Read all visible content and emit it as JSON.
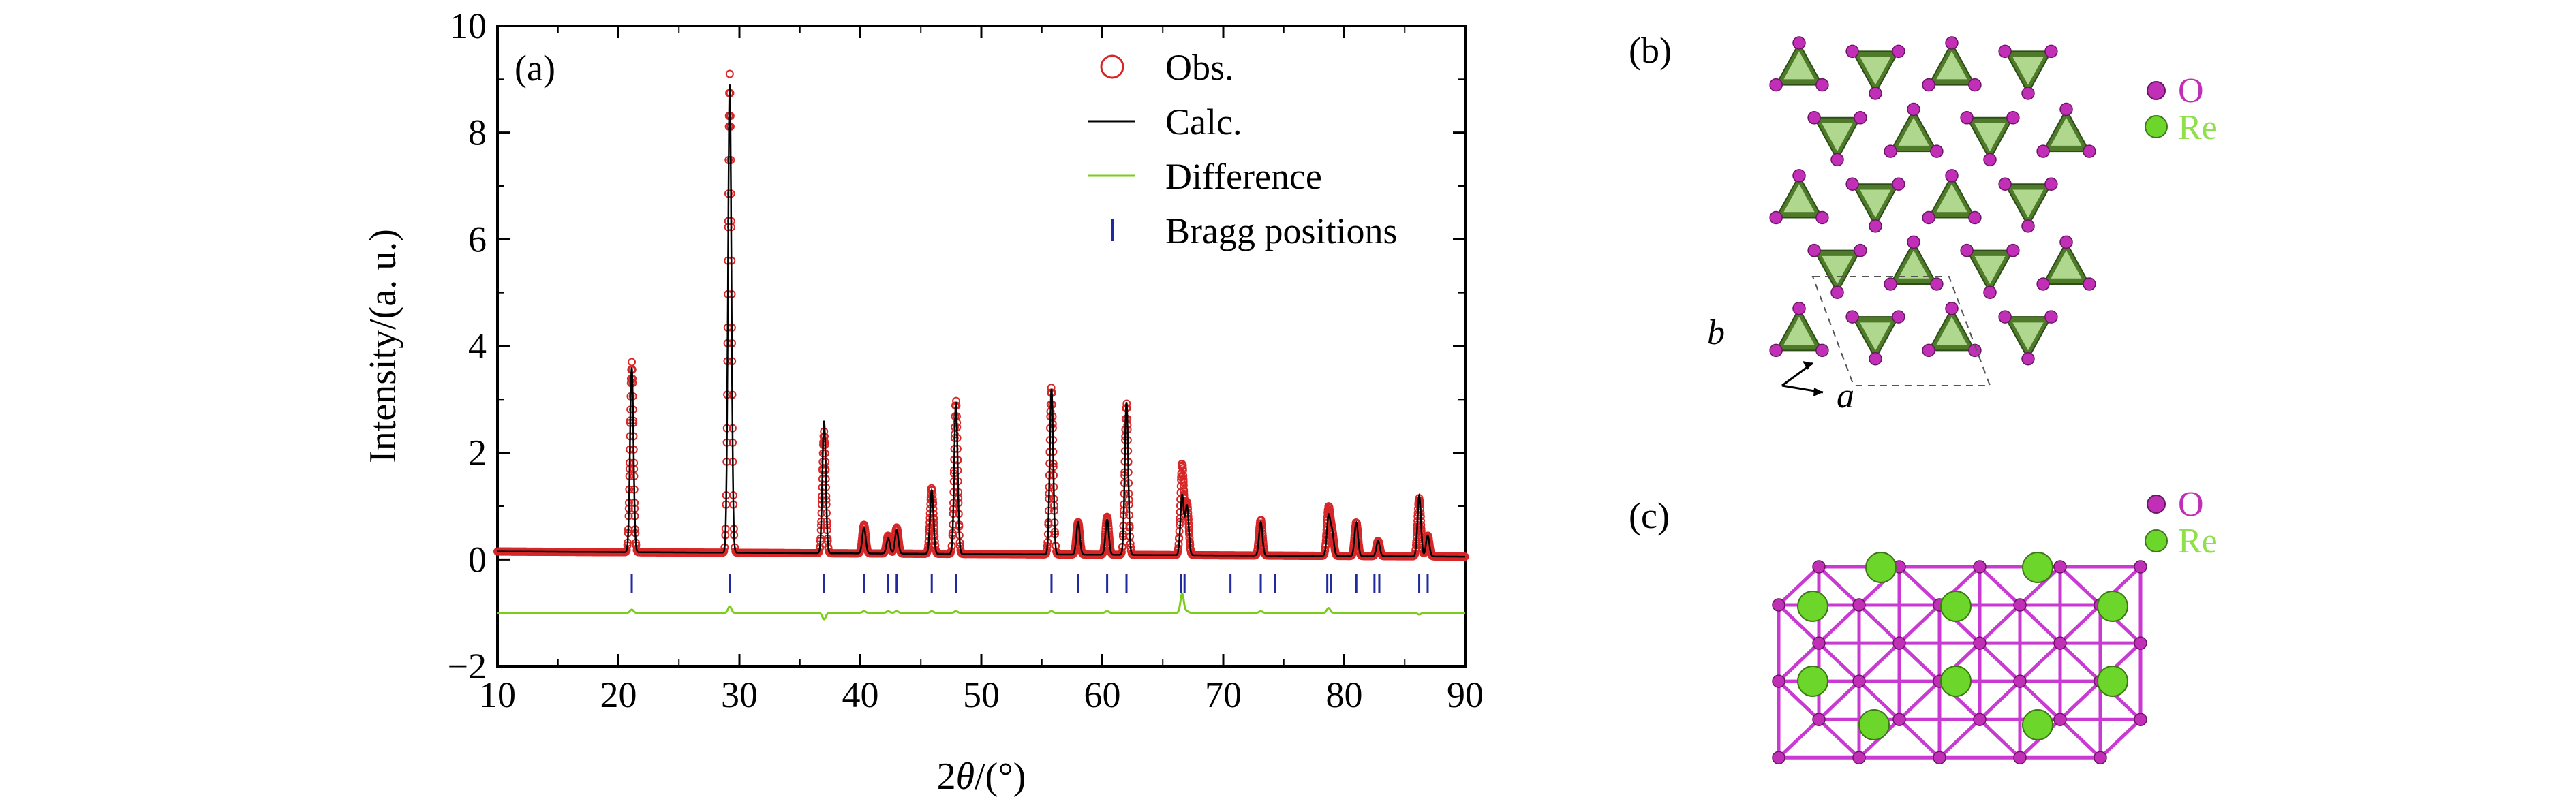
{
  "panel_labels": {
    "a": "(a)",
    "b": "(b)",
    "c": "(c)"
  },
  "legend_b": {
    "o_label": "O",
    "re_label": "Re"
  },
  "legend_c": {
    "o_label": "O",
    "re_label": "Re"
  },
  "axes_labels_b": {
    "a": "a",
    "b": "b"
  },
  "colors": {
    "obs": "#d62728",
    "calc": "#000000",
    "difference": "#7ccc1a",
    "bragg": "#1f2a9e",
    "oxygen": "#c02fb5",
    "rhenium": "#6dd62a",
    "polyhedra": "#4f7a2a",
    "bond": "#c83ad2"
  },
  "chart_data": {
    "type": "line",
    "xlabel_prefix": "2",
    "xlabel_symbol": "θ",
    "xlabel_suffix": "/(°)",
    "ylabel": "Intensity/(a. u.)",
    "xlim": [
      10,
      90
    ],
    "ylim": [
      -2,
      10
    ],
    "xticks": [
      10,
      20,
      30,
      40,
      50,
      60,
      70,
      80,
      90
    ],
    "yticks": [
      -2,
      0,
      2,
      4,
      6,
      8,
      10
    ],
    "background": 0.15,
    "difference_offset": -1.0,
    "bragg_y": -0.45,
    "peaks": [
      {
        "x": 21.1,
        "obs": 3.7,
        "calc": 3.6
      },
      {
        "x": 29.2,
        "obs": 9.1,
        "calc": 8.9
      },
      {
        "x": 37.0,
        "obs": 2.4,
        "calc": 2.6
      },
      {
        "x": 40.3,
        "obs": 0.65,
        "calc": 0.6
      },
      {
        "x": 42.3,
        "obs": 0.45,
        "calc": 0.4
      },
      {
        "x": 43.0,
        "obs": 0.6,
        "calc": 0.55
      },
      {
        "x": 45.9,
        "obs": 1.35,
        "calc": 1.3
      },
      {
        "x": 47.9,
        "obs": 3.0,
        "calc": 2.95
      },
      {
        "x": 55.8,
        "obs": 3.25,
        "calc": 3.2
      },
      {
        "x": 58.0,
        "obs": 0.7,
        "calc": 0.7
      },
      {
        "x": 60.4,
        "obs": 0.8,
        "calc": 0.75
      },
      {
        "x": 62.0,
        "obs": 2.95,
        "calc": 2.95
      },
      {
        "x": 66.6,
        "obs": 1.8,
        "calc": 1.2
      },
      {
        "x": 67.0,
        "obs": 1.05,
        "calc": 1.0
      },
      {
        "x": 73.1,
        "obs": 0.75,
        "calc": 0.7
      },
      {
        "x": 78.7,
        "obs": 0.95,
        "calc": 0.8
      },
      {
        "x": 79.0,
        "obs": 0.5,
        "calc": 0.5
      },
      {
        "x": 81.0,
        "obs": 0.7,
        "calc": 0.7
      },
      {
        "x": 82.8,
        "obs": 0.35,
        "calc": 0.35
      },
      {
        "x": 86.2,
        "obs": 1.15,
        "calc": 1.2
      },
      {
        "x": 86.9,
        "obs": 0.45,
        "calc": 0.45
      }
    ],
    "bragg_positions": [
      21.1,
      29.2,
      37.0,
      40.3,
      42.3,
      43.0,
      45.9,
      47.9,
      55.8,
      58.0,
      60.4,
      62.0,
      66.5,
      66.8,
      70.6,
      73.1,
      74.3,
      78.6,
      78.9,
      81.0,
      82.5,
      82.9,
      86.2,
      86.9
    ],
    "legend": [
      {
        "name": "Obs.",
        "marker": "circle"
      },
      {
        "name": "Calc.",
        "marker": "line"
      },
      {
        "name": "Difference",
        "marker": "line"
      },
      {
        "name": "Bragg positions",
        "marker": "tick"
      }
    ],
    "legend_position": "top-right",
    "grid": false
  }
}
